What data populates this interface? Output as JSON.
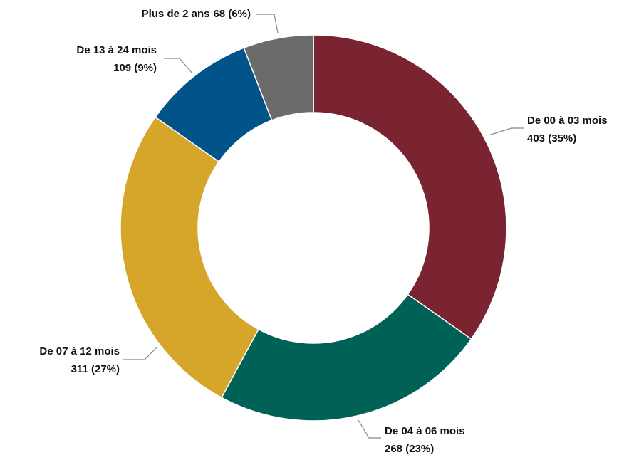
{
  "chart_data": {
    "type": "pie",
    "categories": [
      "De 00 à 03 mois",
      "De 04 à 06 mois",
      "De 07 à 12 mois",
      "De 13 à 24 mois",
      "Plus de 2 ans"
    ],
    "values": [
      403,
      268,
      311,
      109,
      68
    ],
    "value_labels": [
      "403 (35%)",
      "268 (23%)",
      "311 (27%)",
      "109 (9%)",
      "68 (6%)"
    ],
    "colors": [
      "#7b2431",
      "#006257",
      "#d6a62b",
      "#00548a",
      "#6b6b6b"
    ]
  }
}
